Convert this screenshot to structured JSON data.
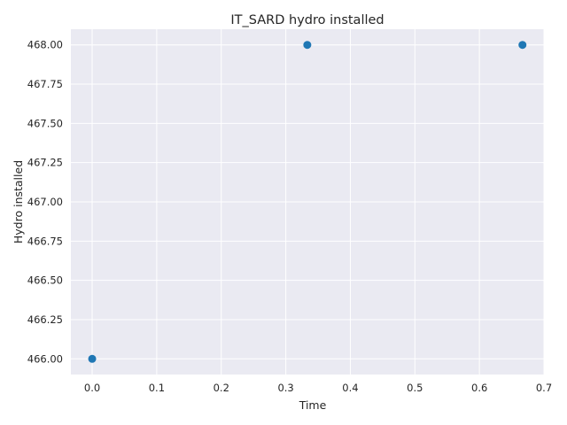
{
  "chart_data": {
    "type": "scatter",
    "title": "IT_SARD hydro installed",
    "xlabel": "Time",
    "ylabel": "Hydro installed",
    "xlim": [
      -0.033,
      0.7
    ],
    "ylim": [
      465.9,
      468.1
    ],
    "xticks": [
      0.0,
      0.1,
      0.2,
      0.3,
      0.4,
      0.5,
      0.6,
      0.7
    ],
    "xtick_labels": [
      "0.0",
      "0.1",
      "0.2",
      "0.3",
      "0.4",
      "0.5",
      "0.6",
      "0.7"
    ],
    "yticks": [
      466.0,
      466.25,
      466.5,
      466.75,
      467.0,
      467.25,
      467.5,
      467.75,
      468.0
    ],
    "ytick_labels": [
      "466.00",
      "466.25",
      "466.50",
      "466.75",
      "467.00",
      "467.25",
      "467.50",
      "467.75",
      "468.00"
    ],
    "series": [
      {
        "x": [
          0.0,
          0.3333,
          0.6667
        ],
        "y": [
          466.0,
          468.0,
          468.0
        ]
      }
    ],
    "grid": true,
    "style": {
      "background": "#eaeaf2",
      "grid_color": "#ffffff",
      "marker_color": "#1f77b4"
    }
  }
}
